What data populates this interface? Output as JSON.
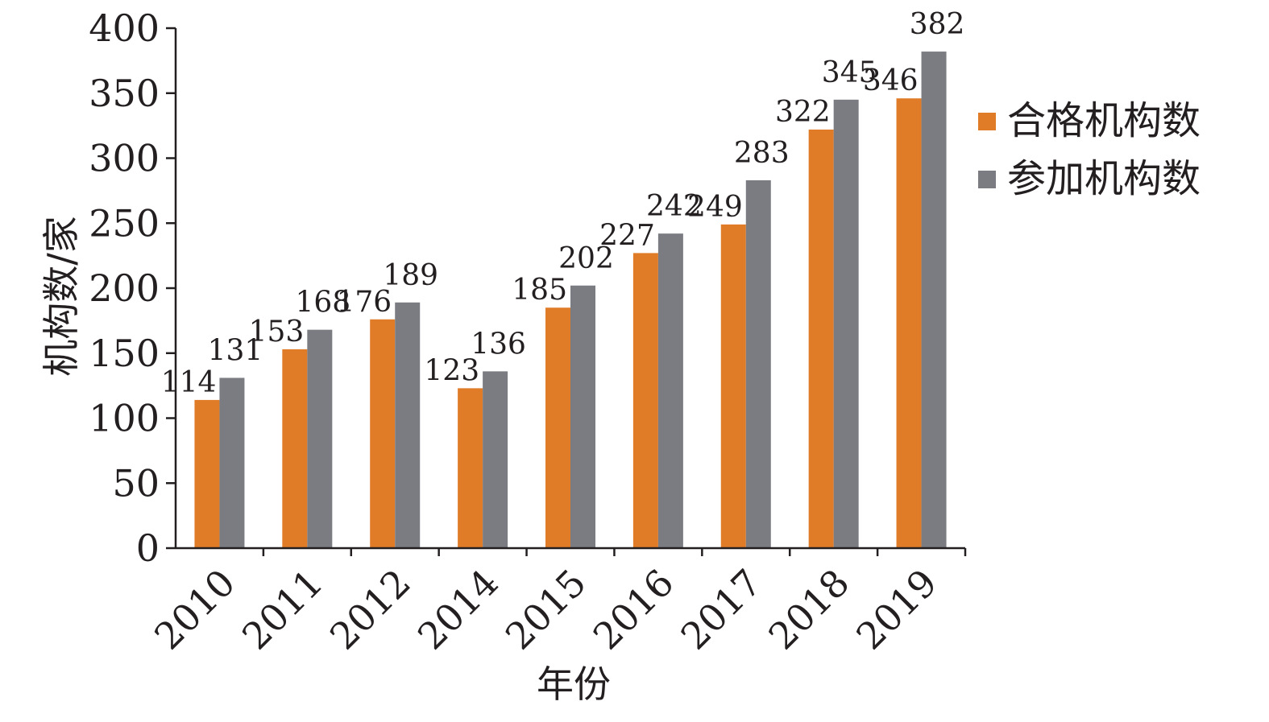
{
  "chart_data": {
    "type": "bar",
    "categories": [
      "2010",
      "2011",
      "2012",
      "2014",
      "2015",
      "2016",
      "2017",
      "2018",
      "2019"
    ],
    "series": [
      {
        "name": "合格机构数",
        "color": "#e07b28",
        "values": [
          114,
          153,
          176,
          123,
          185,
          227,
          249,
          322,
          346
        ]
      },
      {
        "name": "参加机构数",
        "color": "#7a7c82",
        "values": [
          131,
          168,
          189,
          136,
          202,
          242,
          283,
          345,
          382
        ]
      }
    ],
    "xlabel": "年份",
    "ylabel": "机构数/家",
    "ylim": [
      0,
      400
    ],
    "yticks": [
      0,
      50,
      100,
      150,
      200,
      250,
      300,
      350,
      400
    ],
    "grid": false,
    "legend_position": "right"
  }
}
